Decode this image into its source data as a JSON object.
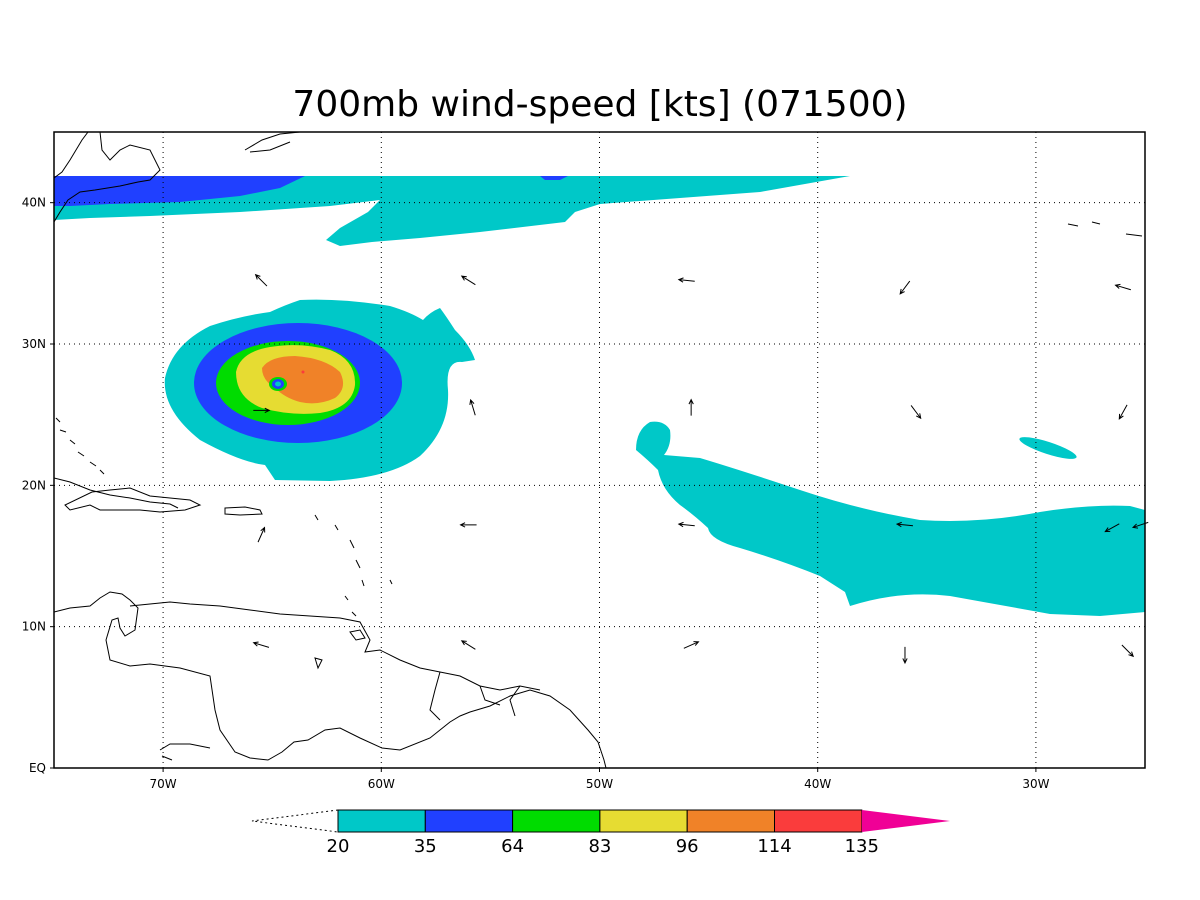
{
  "title": "700mb wind-speed [kts] (071500)",
  "map": {
    "lon_range": [
      -75,
      -25
    ],
    "lat_range": [
      0,
      45
    ],
    "x_ticks": [
      {
        "lon": -70,
        "label": "70W"
      },
      {
        "lon": -60,
        "label": "60W"
      },
      {
        "lon": -50,
        "label": "50W"
      },
      {
        "lon": -40,
        "label": "40W"
      },
      {
        "lon": -30,
        "label": "30W"
      }
    ],
    "y_ticks": [
      {
        "lat": 0,
        "label": "EQ"
      },
      {
        "lat": 10,
        "label": "10N"
      },
      {
        "lat": 20,
        "label": "20N"
      },
      {
        "lat": 30,
        "label": "30N"
      },
      {
        "lat": 40,
        "label": "40N"
      }
    ],
    "grid": "dotted"
  },
  "colorbar": {
    "levels": [
      "20",
      "35",
      "64",
      "83",
      "96",
      "114",
      "135"
    ],
    "colors": [
      "#00c8c8",
      "#2040ff",
      "#00dc00",
      "#e6dc32",
      "#f08228",
      "#fa3c3c",
      "#f00096"
    ]
  },
  "vectors": [
    {
      "lon": -65.5,
      "lat": 34.5,
      "u": -0.7,
      "v": 0.7
    },
    {
      "lon": -56,
      "lat": 34.5,
      "u": -0.8,
      "v": 0.5
    },
    {
      "lon": -46,
      "lat": 34.5,
      "u": -1.0,
      "v": 0.1
    },
    {
      "lon": -36,
      "lat": 34.0,
      "u": -0.6,
      "v": -0.8
    },
    {
      "lon": -26,
      "lat": 34.0,
      "u": -1.0,
      "v": 0.3
    },
    {
      "lon": -65.5,
      "lat": 25.3,
      "u": 1.0,
      "v": 0.0
    },
    {
      "lon": -55.8,
      "lat": 25.5,
      "u": -0.3,
      "v": 1.0
    },
    {
      "lon": -45.8,
      "lat": 25.5,
      "u": 0.0,
      "v": 1.0
    },
    {
      "lon": -35.5,
      "lat": 25.2,
      "u": 0.6,
      "v": -0.8
    },
    {
      "lon": -26,
      "lat": 25.2,
      "u": -0.5,
      "v": -0.9
    },
    {
      "lon": -65.5,
      "lat": 16.5,
      "u": 0.4,
      "v": 0.9
    },
    {
      "lon": -56.0,
      "lat": 17.2,
      "u": -1.0,
      "v": 0.0
    },
    {
      "lon": -46.0,
      "lat": 17.2,
      "u": -1.0,
      "v": 0.1
    },
    {
      "lon": -36.0,
      "lat": 17.2,
      "u": -1.0,
      "v": 0.1
    },
    {
      "lon": -26.5,
      "lat": 17.0,
      "u": -0.9,
      "v": -0.5
    },
    {
      "lon": -25.2,
      "lat": 17.2,
      "u": -0.9,
      "v": -0.3
    },
    {
      "lon": -65.5,
      "lat": 8.7,
      "u": -1.0,
      "v": 0.3
    },
    {
      "lon": -56.0,
      "lat": 8.7,
      "u": -0.8,
      "v": 0.5
    },
    {
      "lon": -45.8,
      "lat": 8.7,
      "u": 0.9,
      "v": 0.4
    },
    {
      "lon": -36.0,
      "lat": 8.0,
      "u": 0.0,
      "v": -1.0
    },
    {
      "lon": -25.8,
      "lat": 8.3,
      "u": 0.7,
      "v": -0.7
    }
  ]
}
